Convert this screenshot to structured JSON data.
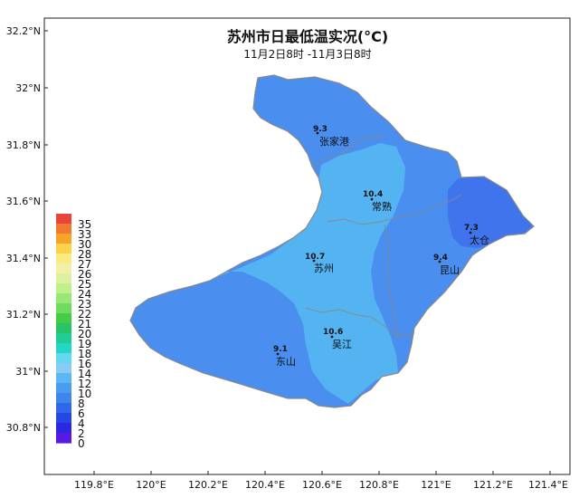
{
  "title": "苏州市日最低温实况(°C)",
  "subtitle": "11月2日8时 -11月3日8时",
  "axes": {
    "lat_ticks": [
      "32.2°N",
      "32°N",
      "31.8°N",
      "31.6°N",
      "31.4°N",
      "31.2°N",
      "31°N",
      "30.8°N"
    ],
    "lon_ticks": [
      "119.8°E",
      "120°E",
      "120.2°E",
      "120.4°E",
      "120.6°E",
      "120.8°E",
      "121°E",
      "121.2°E",
      "121.4°E"
    ]
  },
  "legend": {
    "labels": [
      "35",
      "33",
      "30",
      "28",
      "27",
      "26",
      "25",
      "24",
      "23",
      "22",
      "21",
      "20",
      "19",
      "18",
      "16",
      "14",
      "12",
      "10",
      "8",
      "6",
      "4",
      "2",
      "0"
    ],
    "colors": [
      "#e8443a",
      "#f07a30",
      "#f8a328",
      "#fbd24a",
      "#fbea82",
      "#f2f0a6",
      "#ddf0a0",
      "#bff08c",
      "#98e878",
      "#6fdc60",
      "#44cc44",
      "#28c468",
      "#22cc96",
      "#22d8c4",
      "#64d8f0",
      "#8ccaf6",
      "#5ab8f4",
      "#4a9cf0",
      "#3f86ec",
      "#2f68e8",
      "#2548e4",
      "#2a28e0",
      "#5a18e4"
    ]
  },
  "stations": [
    {
      "name": "张家港",
      "value": "9.3"
    },
    {
      "name": "常熟",
      "value": "10.4"
    },
    {
      "name": "太仓",
      "value": "7.3"
    },
    {
      "name": "苏州",
      "value": "10.7"
    },
    {
      "name": "昆山",
      "value": "9.4"
    },
    {
      "name": "吴江",
      "value": "10.6"
    },
    {
      "name": "东山",
      "value": "9.1"
    }
  ],
  "colors": {
    "zone_8_10": "#4a8ff0",
    "zone_10_12": "#54b4f2",
    "zone_6_8": "#3f74ec",
    "boundary": "#888888"
  }
}
